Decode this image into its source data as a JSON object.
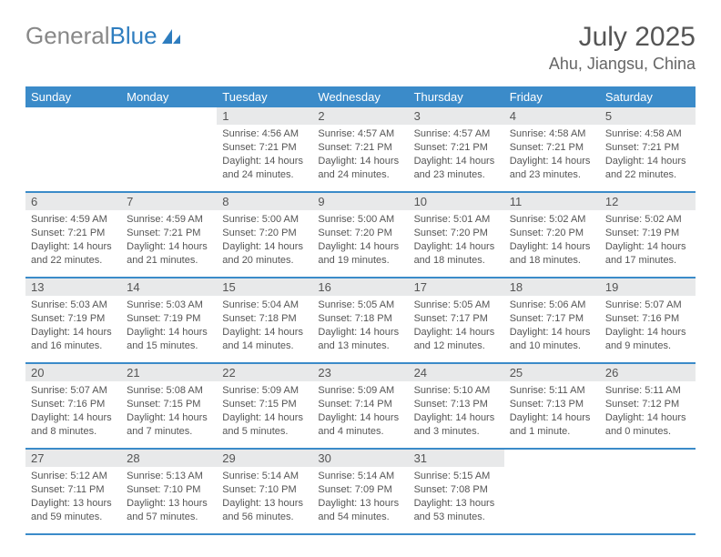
{
  "brand": {
    "textGray": "General",
    "textBlue": "Blue"
  },
  "title": "July 2025",
  "location": "Ahu, Jiangsu, China",
  "colors": {
    "headerBlue": "#3b8bc9",
    "dayNumBg": "#e8e9ea",
    "textGray": "#555555",
    "borderBlue": "#3b8bc9"
  },
  "weekdays": [
    "Sunday",
    "Monday",
    "Tuesday",
    "Wednesday",
    "Thursday",
    "Friday",
    "Saturday"
  ],
  "startOffset": 2,
  "daysInMonth": 31,
  "days": [
    {
      "n": 1,
      "sr": "4:56 AM",
      "ss": "7:21 PM",
      "dl": "14 hours and 24 minutes."
    },
    {
      "n": 2,
      "sr": "4:57 AM",
      "ss": "7:21 PM",
      "dl": "14 hours and 24 minutes."
    },
    {
      "n": 3,
      "sr": "4:57 AM",
      "ss": "7:21 PM",
      "dl": "14 hours and 23 minutes."
    },
    {
      "n": 4,
      "sr": "4:58 AM",
      "ss": "7:21 PM",
      "dl": "14 hours and 23 minutes."
    },
    {
      "n": 5,
      "sr": "4:58 AM",
      "ss": "7:21 PM",
      "dl": "14 hours and 22 minutes."
    },
    {
      "n": 6,
      "sr": "4:59 AM",
      "ss": "7:21 PM",
      "dl": "14 hours and 22 minutes."
    },
    {
      "n": 7,
      "sr": "4:59 AM",
      "ss": "7:21 PM",
      "dl": "14 hours and 21 minutes."
    },
    {
      "n": 8,
      "sr": "5:00 AM",
      "ss": "7:20 PM",
      "dl": "14 hours and 20 minutes."
    },
    {
      "n": 9,
      "sr": "5:00 AM",
      "ss": "7:20 PM",
      "dl": "14 hours and 19 minutes."
    },
    {
      "n": 10,
      "sr": "5:01 AM",
      "ss": "7:20 PM",
      "dl": "14 hours and 18 minutes."
    },
    {
      "n": 11,
      "sr": "5:02 AM",
      "ss": "7:20 PM",
      "dl": "14 hours and 18 minutes."
    },
    {
      "n": 12,
      "sr": "5:02 AM",
      "ss": "7:19 PM",
      "dl": "14 hours and 17 minutes."
    },
    {
      "n": 13,
      "sr": "5:03 AM",
      "ss": "7:19 PM",
      "dl": "14 hours and 16 minutes."
    },
    {
      "n": 14,
      "sr": "5:03 AM",
      "ss": "7:19 PM",
      "dl": "14 hours and 15 minutes."
    },
    {
      "n": 15,
      "sr": "5:04 AM",
      "ss": "7:18 PM",
      "dl": "14 hours and 14 minutes."
    },
    {
      "n": 16,
      "sr": "5:05 AM",
      "ss": "7:18 PM",
      "dl": "14 hours and 13 minutes."
    },
    {
      "n": 17,
      "sr": "5:05 AM",
      "ss": "7:17 PM",
      "dl": "14 hours and 12 minutes."
    },
    {
      "n": 18,
      "sr": "5:06 AM",
      "ss": "7:17 PM",
      "dl": "14 hours and 10 minutes."
    },
    {
      "n": 19,
      "sr": "5:07 AM",
      "ss": "7:16 PM",
      "dl": "14 hours and 9 minutes."
    },
    {
      "n": 20,
      "sr": "5:07 AM",
      "ss": "7:16 PM",
      "dl": "14 hours and 8 minutes."
    },
    {
      "n": 21,
      "sr": "5:08 AM",
      "ss": "7:15 PM",
      "dl": "14 hours and 7 minutes."
    },
    {
      "n": 22,
      "sr": "5:09 AM",
      "ss": "7:15 PM",
      "dl": "14 hours and 5 minutes."
    },
    {
      "n": 23,
      "sr": "5:09 AM",
      "ss": "7:14 PM",
      "dl": "14 hours and 4 minutes."
    },
    {
      "n": 24,
      "sr": "5:10 AM",
      "ss": "7:13 PM",
      "dl": "14 hours and 3 minutes."
    },
    {
      "n": 25,
      "sr": "5:11 AM",
      "ss": "7:13 PM",
      "dl": "14 hours and 1 minute."
    },
    {
      "n": 26,
      "sr": "5:11 AM",
      "ss": "7:12 PM",
      "dl": "14 hours and 0 minutes."
    },
    {
      "n": 27,
      "sr": "5:12 AM",
      "ss": "7:11 PM",
      "dl": "13 hours and 59 minutes."
    },
    {
      "n": 28,
      "sr": "5:13 AM",
      "ss": "7:10 PM",
      "dl": "13 hours and 57 minutes."
    },
    {
      "n": 29,
      "sr": "5:14 AM",
      "ss": "7:10 PM",
      "dl": "13 hours and 56 minutes."
    },
    {
      "n": 30,
      "sr": "5:14 AM",
      "ss": "7:09 PM",
      "dl": "13 hours and 54 minutes."
    },
    {
      "n": 31,
      "sr": "5:15 AM",
      "ss": "7:08 PM",
      "dl": "13 hours and 53 minutes."
    }
  ],
  "labels": {
    "sunrise": "Sunrise:",
    "sunset": "Sunset:",
    "daylight": "Daylight:"
  }
}
